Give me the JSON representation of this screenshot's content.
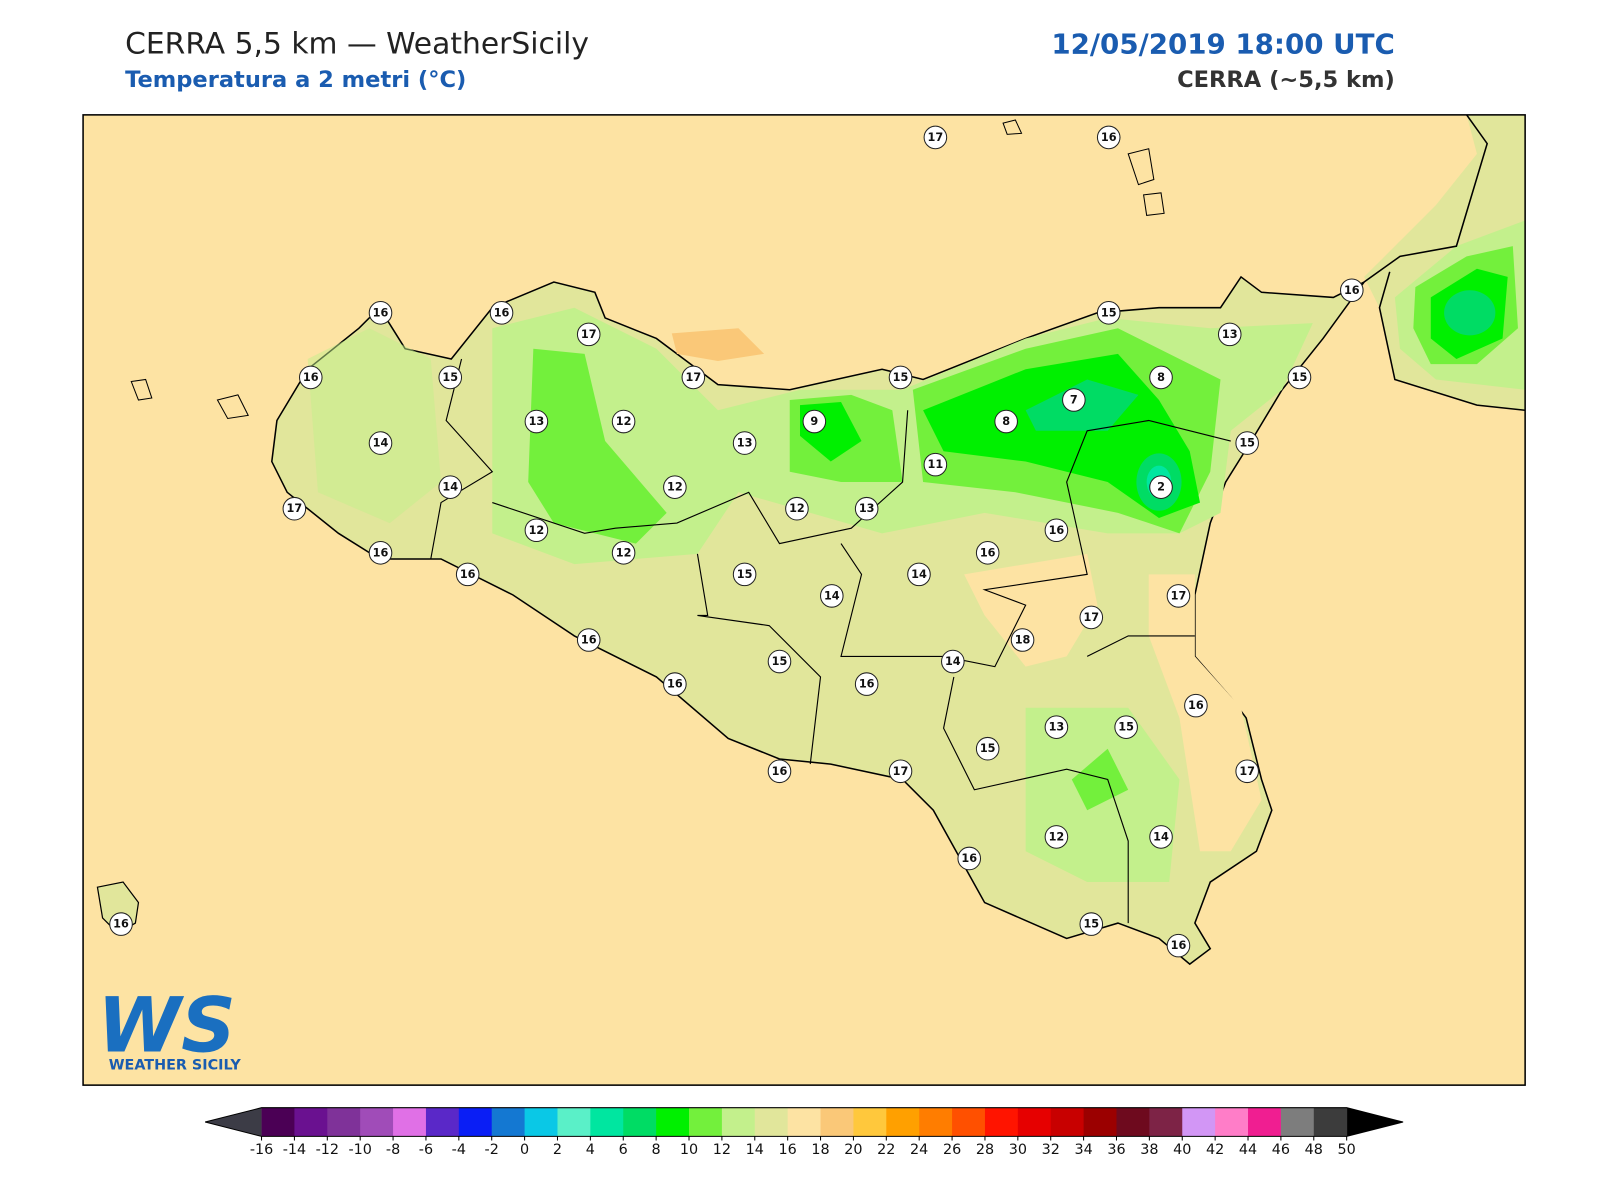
{
  "header": {
    "title": "CERRA 5,5 km — WeatherSicily",
    "subtitle": "Temperatura a 2 metri (°C)",
    "datetime": "12/05/2019 18:00 UTC",
    "source": "CERRA (~5,5 km)"
  },
  "map": {
    "background": "#fde3a3",
    "stations": [
      17,
      16,
      16,
      16,
      17,
      15,
      16,
      13,
      16,
      15,
      17,
      15,
      8,
      15,
      7,
      13,
      12,
      9,
      8,
      14,
      13,
      15,
      14,
      12,
      11,
      2,
      17,
      12,
      13,
      12,
      16,
      16,
      12,
      16,
      16,
      15,
      14,
      14,
      17,
      17,
      16,
      18,
      15,
      14,
      16,
      16,
      16,
      13,
      15,
      15,
      16,
      17,
      17,
      12,
      14,
      16,
      15,
      16,
      16
    ]
  },
  "colorbar": {
    "ticks": [
      -16,
      -14,
      -12,
      -10,
      -8,
      -6,
      -4,
      -2,
      0,
      2,
      4,
      6,
      8,
      10,
      12,
      14,
      16,
      18,
      20,
      22,
      24,
      26,
      28,
      30,
      32,
      34,
      36,
      38,
      40,
      42,
      44,
      46,
      48,
      50
    ],
    "colors": [
      "#4b0055",
      "#6a1190",
      "#7f3299",
      "#a04cb8",
      "#e070e6",
      "#5a28c8",
      "#0a1ef5",
      "#1478d2",
      "#0ac8e6",
      "#5af0c8",
      "#00e6a0",
      "#00dc64",
      "#00f000",
      "#73f03c",
      "#c3f08c",
      "#e1e69b",
      "#fde3a3",
      "#fac878",
      "#ffc83c",
      "#ffa000",
      "#ff7d00",
      "#ff5000",
      "#ff1400",
      "#e60000",
      "#c80000",
      "#9b0000",
      "#6e0a1e",
      "#7d2346",
      "#d296f5",
      "#ff7dc8",
      "#f01e91",
      "#7d7d7d",
      "#3c3c3c"
    ],
    "under_color": "#3c3c46",
    "over_color": "#000000"
  },
  "logo": {
    "mark": "WS",
    "text": "WEATHER SICILY"
  }
}
